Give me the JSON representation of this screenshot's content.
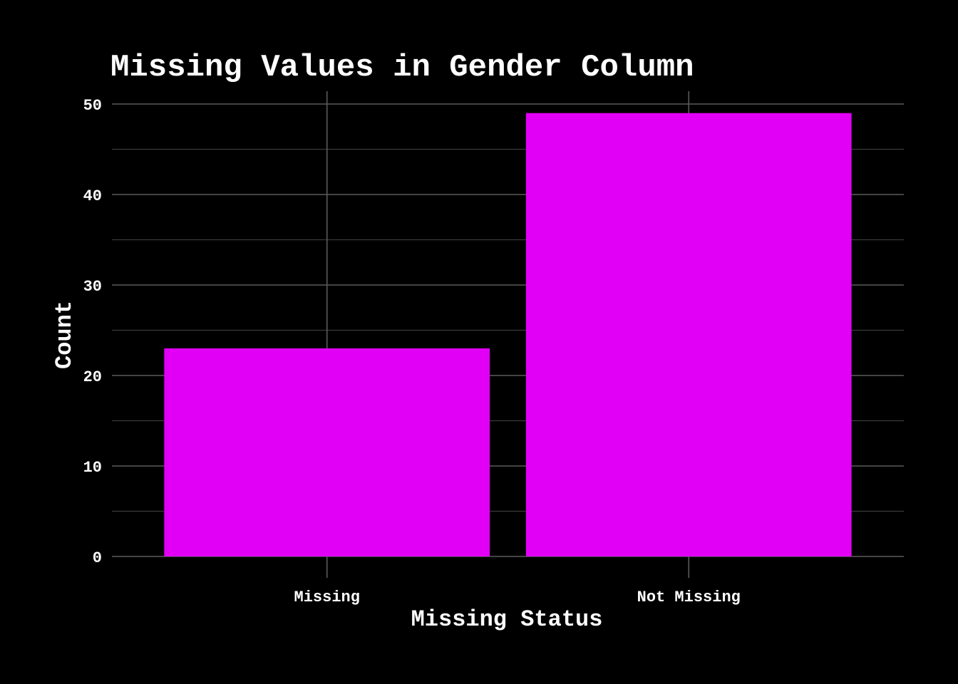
{
  "chart_data": {
    "type": "bar",
    "title": "Missing Values in Gender Column",
    "xlabel": "Missing Status",
    "ylabel": "Count",
    "categories": [
      "Missing",
      "Not Missing"
    ],
    "values": [
      23,
      49
    ],
    "ylim": [
      0,
      51.5
    ],
    "yticks": [
      "0",
      "10",
      "20",
      "30",
      "40",
      "50"
    ],
    "grid": true,
    "background_color": "#000000",
    "bar_color": "#e100f5",
    "text_color": "#ffffff",
    "grid_color": "#5a5a5a"
  }
}
